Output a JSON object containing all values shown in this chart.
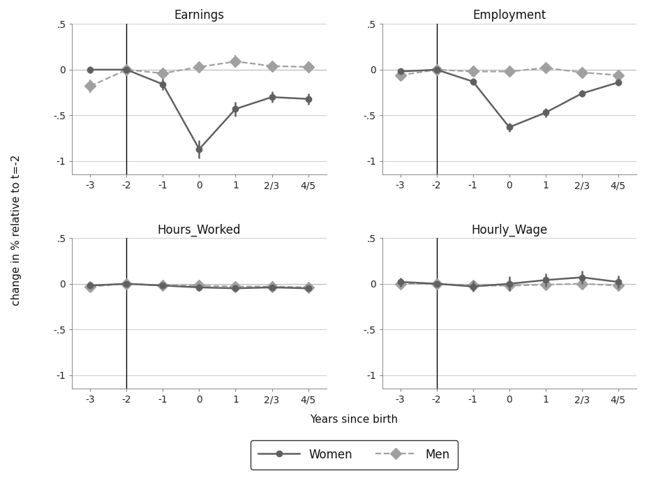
{
  "x_tick_labels": [
    "-3",
    "-2",
    "-1",
    "0",
    "1",
    "2/3",
    "4/5"
  ],
  "x_positions": [
    -3,
    -2,
    -1,
    0,
    1,
    2,
    3
  ],
  "ylim": [
    -1.15,
    0.35
  ],
  "yticks": [
    -1.0,
    -0.5,
    0.0,
    0.5
  ],
  "ytick_labels": [
    "-1",
    "-.5",
    "0",
    ".5"
  ],
  "vline_x": -2,
  "panels": [
    {
      "title": "Earnings",
      "women_y": [
        0.0,
        0.0,
        -0.16,
        -0.87,
        -0.43,
        -0.3,
        -0.32
      ],
      "women_yerr": [
        0.04,
        0.0,
        0.06,
        0.1,
        0.08,
        0.06,
        0.06
      ],
      "men_y": [
        -0.18,
        0.0,
        -0.04,
        0.03,
        0.09,
        0.04,
        0.03
      ],
      "men_yerr": [
        0.07,
        0.0,
        0.04,
        0.05,
        0.07,
        0.04,
        0.06
      ]
    },
    {
      "title": "Employment",
      "women_y": [
        -0.02,
        0.0,
        -0.13,
        -0.63,
        -0.47,
        -0.26,
        -0.14
      ],
      "women_yerr": [
        0.03,
        0.0,
        0.04,
        0.05,
        0.05,
        0.04,
        0.04
      ],
      "men_y": [
        -0.06,
        0.0,
        -0.02,
        -0.02,
        0.02,
        -0.03,
        -0.06
      ],
      "men_yerr": [
        0.03,
        0.0,
        0.02,
        0.02,
        0.03,
        0.02,
        0.03
      ]
    },
    {
      "title": "Hours_Worked",
      "women_y": [
        -0.02,
        0.0,
        -0.02,
        -0.04,
        -0.05,
        -0.04,
        -0.05
      ],
      "women_yerr": [
        0.02,
        0.0,
        0.02,
        0.04,
        0.03,
        0.02,
        0.03
      ],
      "men_y": [
        -0.03,
        0.0,
        -0.02,
        -0.02,
        -0.03,
        -0.03,
        -0.04
      ],
      "men_yerr": [
        0.02,
        0.0,
        0.02,
        0.02,
        0.02,
        0.02,
        0.02
      ]
    },
    {
      "title": "Hourly_Wage",
      "women_y": [
        0.02,
        0.0,
        -0.03,
        0.0,
        0.04,
        0.07,
        0.02
      ],
      "women_yerr": [
        0.05,
        0.0,
        0.06,
        0.08,
        0.07,
        0.07,
        0.07
      ],
      "men_y": [
        0.0,
        0.0,
        -0.02,
        -0.02,
        -0.01,
        0.0,
        -0.02
      ],
      "men_yerr": [
        0.04,
        0.0,
        0.04,
        0.04,
        0.03,
        0.04,
        0.04
      ]
    }
  ],
  "women_color": "#606060",
  "men_color": "#a0a0a0",
  "women_label": "Women",
  "men_label": "Men",
  "ylabel": "change in % relative to t=-2",
  "xlabel": "Years since birth",
  "background_color": "#ffffff",
  "grid_color": "#d0d0d0",
  "title_fontsize": 12,
  "label_fontsize": 11,
  "tick_fontsize": 10,
  "legend_fontsize": 12
}
